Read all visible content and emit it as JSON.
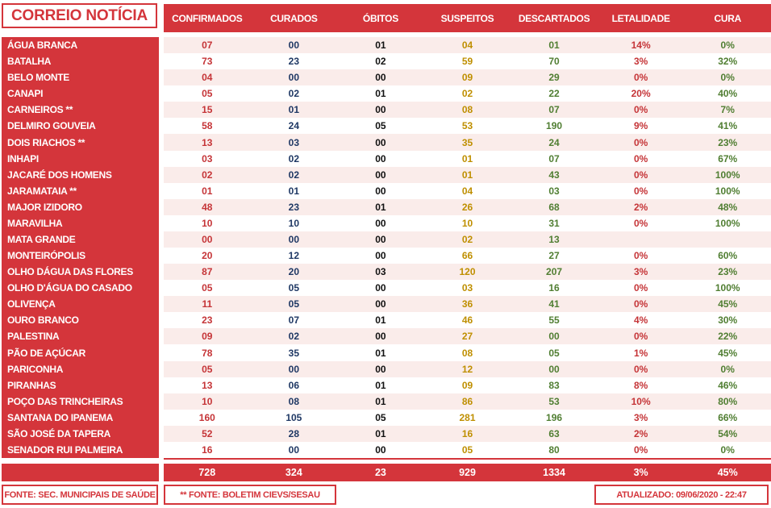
{
  "logo": {
    "title": "CORREIO NOTÍCIA"
  },
  "chart_data": {
    "type": "table",
    "title": "CORREIO NOTÍCIA - painel COVID por município",
    "columns": [
      "CONFIRMADOS",
      "CURADOS",
      "ÓBITOS",
      "SUSPEITOS",
      "DESCARTADOS",
      "LETALIDADE",
      "CURA"
    ],
    "rows": [
      {
        "name": "ÁGUA BRANCA",
        "values": [
          "07",
          "00",
          "01",
          "04",
          "01",
          "14%",
          "0%"
        ]
      },
      {
        "name": "BATALHA",
        "values": [
          "73",
          "23",
          "02",
          "59",
          "70",
          "3%",
          "32%"
        ]
      },
      {
        "name": "BELO MONTE",
        "values": [
          "04",
          "00",
          "00",
          "09",
          "29",
          "0%",
          "0%"
        ]
      },
      {
        "name": "CANAPI",
        "values": [
          "05",
          "02",
          "01",
          "02",
          "22",
          "20%",
          "40%"
        ]
      },
      {
        "name": "CARNEIROS **",
        "values": [
          "15",
          "01",
          "00",
          "08",
          "07",
          "0%",
          "7%"
        ]
      },
      {
        "name": "DELMIRO GOUVEIA",
        "values": [
          "58",
          "24",
          "05",
          "53",
          "190",
          "9%",
          "41%"
        ]
      },
      {
        "name": "DOIS RIACHOS **",
        "values": [
          "13",
          "03",
          "00",
          "35",
          "24",
          "0%",
          "23%"
        ]
      },
      {
        "name": "INHAPI",
        "values": [
          "03",
          "02",
          "00",
          "01",
          "07",
          "0%",
          "67%"
        ]
      },
      {
        "name": "JACARÉ DOS HOMENS",
        "values": [
          "02",
          "02",
          "00",
          "01",
          "43",
          "0%",
          "100%"
        ]
      },
      {
        "name": "JARAMATAIA **",
        "values": [
          "01",
          "01",
          "00",
          "04",
          "03",
          "0%",
          "100%"
        ]
      },
      {
        "name": "MAJOR IZIDORO",
        "values": [
          "48",
          "23",
          "01",
          "26",
          "68",
          "2%",
          "48%"
        ]
      },
      {
        "name": "MARAVILHA",
        "values": [
          "10",
          "10",
          "00",
          "10",
          "31",
          "0%",
          "100%"
        ]
      },
      {
        "name": "MATA GRANDE",
        "values": [
          "00",
          "00",
          "00",
          "02",
          "13",
          "",
          ""
        ]
      },
      {
        "name": "MONTEIRÓPOLIS",
        "values": [
          "20",
          "12",
          "00",
          "66",
          "27",
          "0%",
          "60%"
        ]
      },
      {
        "name": "OLHO DÁGUA DAS FLORES",
        "values": [
          "87",
          "20",
          "03",
          "120",
          "207",
          "3%",
          "23%"
        ]
      },
      {
        "name": "OLHO D'ÁGUA DO CASADO",
        "values": [
          "05",
          "05",
          "00",
          "03",
          "16",
          "0%",
          "100%"
        ]
      },
      {
        "name": "OLIVENÇA",
        "values": [
          "11",
          "05",
          "00",
          "36",
          "41",
          "0%",
          "45%"
        ]
      },
      {
        "name": "OURO BRANCO",
        "values": [
          "23",
          "07",
          "01",
          "46",
          "55",
          "4%",
          "30%"
        ]
      },
      {
        "name": "PALESTINA",
        "values": [
          "09",
          "02",
          "00",
          "27",
          "00",
          "0%",
          "22%"
        ]
      },
      {
        "name": "PÃO DE AÇÚCAR",
        "values": [
          "78",
          "35",
          "01",
          "08",
          "05",
          "1%",
          "45%"
        ]
      },
      {
        "name": "PARICONHA",
        "values": [
          "05",
          "00",
          "00",
          "12",
          "00",
          "0%",
          "0%"
        ]
      },
      {
        "name": "PIRANHAS",
        "values": [
          "13",
          "06",
          "01",
          "09",
          "83",
          "8%",
          "46%"
        ]
      },
      {
        "name": "POÇO DAS TRINCHEIRAS",
        "values": [
          "10",
          "08",
          "01",
          "86",
          "53",
          "10%",
          "80%"
        ]
      },
      {
        "name": "SANTANA DO IPANEMA",
        "values": [
          "160",
          "105",
          "05",
          "281",
          "196",
          "3%",
          "66%"
        ]
      },
      {
        "name": "SÃO JOSÉ DA TAPERA",
        "values": [
          "52",
          "28",
          "01",
          "16",
          "63",
          "2%",
          "54%"
        ]
      },
      {
        "name": "SENADOR RUI PALMEIRA",
        "values": [
          "16",
          "00",
          "00",
          "05",
          "80",
          "0%",
          "0%"
        ]
      }
    ],
    "totals": [
      "728",
      "324",
      "23",
      "929",
      "1334",
      "3%",
      "45%"
    ]
  },
  "footer": {
    "source_left": "FONTE: SEC. MUNICIPAIS DE SAÚDE",
    "source_mid": "** FONTE: BOLETIM CIEVS/SESAU",
    "updated": "ATUALIZADO: 09/06/2020 - 22:47"
  },
  "colors": {
    "brand_red": "#D4353B",
    "stripe_pink": "#FAECEA",
    "confirmados": "#C53437",
    "curados": "#1F3864",
    "obitos": "#111111",
    "suspeitos": "#BF8F00",
    "descartados": "#507E32",
    "letalidade": "#C53437",
    "cura": "#507E32"
  }
}
